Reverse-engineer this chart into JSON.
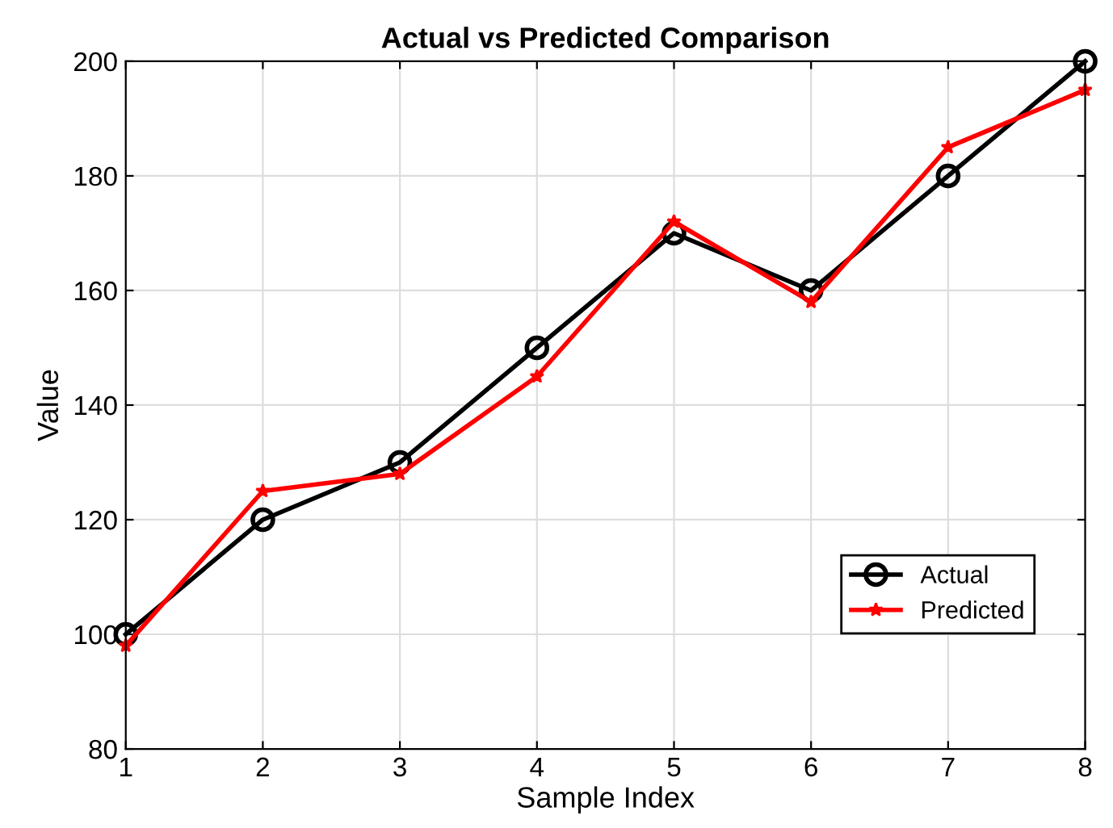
{
  "chart_data": {
    "type": "line",
    "title": "Actual vs Predicted Comparison",
    "xlabel": "Sample Index",
    "ylabel": "Value",
    "x": [
      1,
      2,
      3,
      4,
      5,
      6,
      7,
      8
    ],
    "series": [
      {
        "name": "Actual",
        "color": "#000000",
        "marker": "circle",
        "values": [
          100,
          120,
          130,
          150,
          170,
          160,
          180,
          200
        ]
      },
      {
        "name": "Predicted",
        "color": "#ff0000",
        "marker": "star",
        "values": [
          98,
          125,
          128,
          145,
          172,
          158,
          185,
          195
        ]
      }
    ],
    "xlim": [
      1,
      8
    ],
    "xticks": [
      1,
      2,
      3,
      4,
      5,
      6,
      7,
      8
    ],
    "ylim": [
      80,
      200
    ],
    "yticks": [
      80,
      100,
      120,
      140,
      160,
      180,
      200
    ],
    "grid": true,
    "legend": "bottom right",
    "line_style": "solid"
  }
}
